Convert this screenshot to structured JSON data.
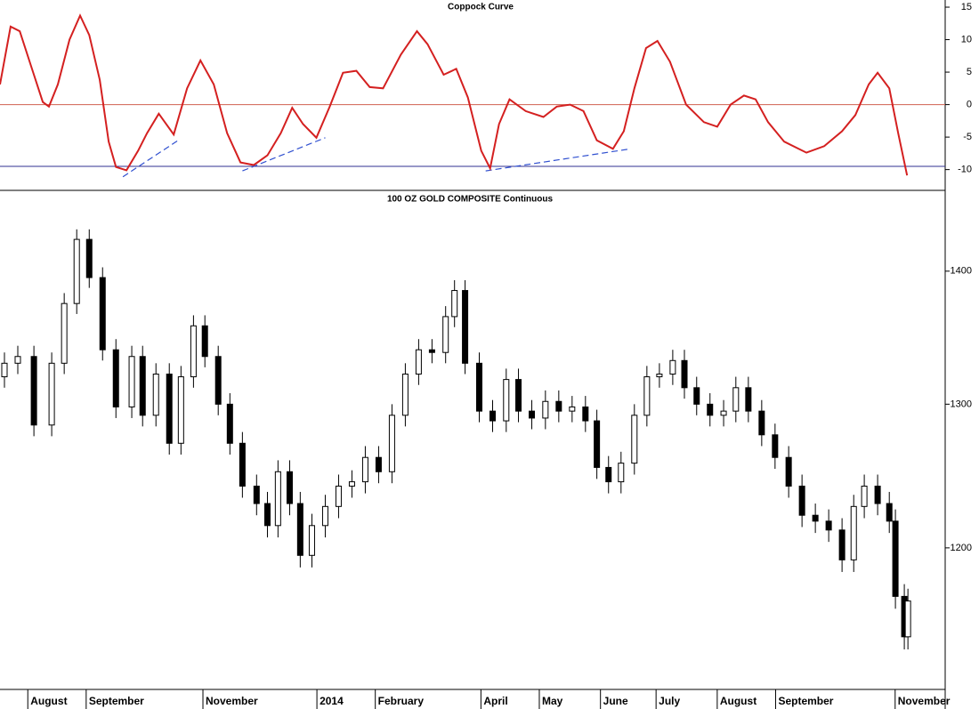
{
  "chart_data": [
    {
      "type": "line",
      "title": "Coppock Curve",
      "color": "#d42020",
      "x": [
        0,
        3.8,
        7.1,
        11.2,
        15.4,
        17.6,
        20.8,
        25.0,
        28.8,
        32.1,
        35.9,
        39.1,
        41.7,
        45.5,
        49.7,
        52.9,
        57.1,
        59.3,
        62.5,
        67.3,
        72.1,
        76.9,
        81.7,
        86.5,
        91.3,
        96.2,
        101.0,
        105.1,
        109.0,
        113.8,
        118.6,
        123.4,
        128.2,
        133.0,
        137.8,
        144.2,
        150.0,
        153.8,
        159.6,
        164.1,
        168.3,
        173.1,
        176.3,
        179.5,
        183.3,
        189.1,
        195.5,
        200.3,
        205.1,
        209.9,
        214.7,
        220.5,
        224.4,
        228.2,
        232.4,
        236.5,
        241.0,
        246.8,
        253.2,
        258.0,
        262.8,
        267.6,
        271.8,
        276.3,
        282.1,
        290.1,
        296.5,
        302.9,
        307.7,
        312.5,
        315.7,
        319.9,
        323.1,
        326.3
      ],
      "values": [
        3.1,
        12.0,
        11.3,
        5.9,
        0.4,
        -0.3,
        3.1,
        10.0,
        13.7,
        10.7,
        3.8,
        -5.7,
        -9.6,
        -10.1,
        -7.1,
        -4.4,
        -1.4,
        -2.7,
        -4.6,
        2.5,
        6.8,
        3.1,
        -4.4,
        -8.9,
        -9.3,
        -7.8,
        -4.4,
        -0.5,
        -3.0,
        -5.1,
        -0.3,
        4.9,
        5.2,
        2.7,
        2.5,
        7.7,
        11.3,
        9.3,
        4.6,
        5.5,
        1.1,
        -7.1,
        -9.8,
        -3.0,
        0.8,
        -1.0,
        -1.9,
        -0.3,
        0.0,
        -1.0,
        -5.5,
        -6.8,
        -4.1,
        2.5,
        8.7,
        9.8,
        6.6,
        0.0,
        -2.7,
        -3.4,
        0.0,
        1.4,
        0.8,
        -2.7,
        -5.7,
        -7.4,
        -6.4,
        -4.1,
        -1.6,
        3.1,
        4.9,
        2.5,
        -4.4,
        -10.9
      ],
      "xlim": [
        0,
        340
      ],
      "ylim": [
        -13.2,
        16.1
      ],
      "yticks": [
        15,
        10,
        5,
        0,
        -5,
        -10
      ],
      "reference_lines": [
        {
          "value": 0,
          "color": "#d06050"
        },
        {
          "value": -9.5,
          "color": "#303090"
        }
      ],
      "trendlines": [
        {
          "x": [
            44.2,
            64.1
          ],
          "y": [
            -11.1,
            -5.5
          ],
          "color": "#3050d0"
        },
        {
          "x": [
            87.2,
            117.0
          ],
          "y": [
            -10.2,
            -5.1
          ],
          "color": "#3050d0"
        },
        {
          "x": [
            174.7,
            226.9
          ],
          "y": [
            -10.2,
            -6.8
          ],
          "color": "#3050d0"
        }
      ]
    },
    {
      "type": "candlestick",
      "title": "100 OZ GOLD COMPOSITE Continuous",
      "log_scale": true,
      "x": [
        1.6,
        6.4,
        12.2,
        18.6,
        23.1,
        27.6,
        32.1,
        36.9,
        41.7,
        47.4,
        51.3,
        56.1,
        60.9,
        65.1,
        69.6,
        73.7,
        78.5,
        82.7,
        87.2,
        92.3,
        96.2,
        100,
        104.2,
        108.0,
        112.2,
        117.0,
        121.8,
        126.6,
        131.4,
        136.2,
        141.0,
        145.8,
        150.6,
        155.4,
        160.3,
        163.5,
        167.3,
        172.4,
        177.2,
        182.1,
        186.5,
        191.3,
        196.2,
        201.0,
        205.8,
        210.6,
        214.7,
        218.9,
        223.4,
        228.2,
        232.7,
        237.2,
        242.0,
        246.2,
        250.6,
        255.4,
        260.3,
        264.7,
        269.2,
        274.0,
        278.8,
        283.7,
        288.5,
        293.3,
        298.1,
        302.9,
        307.1,
        310.9,
        315.7,
        319.9,
        322.1,
        325.3,
        326.6
      ],
      "open": [
        1320,
        1330,
        1335,
        1285,
        1330,
        1375,
        1425,
        1395,
        1340,
        1298,
        1335,
        1292,
        1322,
        1272,
        1320,
        1358,
        1335,
        1300,
        1272,
        1242,
        1230,
        1215,
        1252,
        1230,
        1195,
        1215,
        1228,
        1242,
        1245,
        1262,
        1252,
        1292,
        1322,
        1340,
        1338,
        1365,
        1385,
        1330,
        1295,
        1288,
        1318,
        1295,
        1290,
        1302,
        1295,
        1298,
        1288,
        1255,
        1245,
        1258,
        1292,
        1320,
        1322,
        1332,
        1312,
        1300,
        1292,
        1295,
        1312,
        1295,
        1278,
        1262,
        1242,
        1222,
        1218,
        1212,
        1192,
        1228,
        1242,
        1230,
        1218,
        1168,
        1142
      ],
      "high": [
        1338,
        1343,
        1343,
        1338,
        1383,
        1433,
        1433,
        1403,
        1348,
        1343,
        1343,
        1330,
        1330,
        1328,
        1366,
        1366,
        1343,
        1308,
        1280,
        1250,
        1238,
        1260,
        1260,
        1238,
        1223,
        1236,
        1250,
        1253,
        1270,
        1270,
        1300,
        1330,
        1348,
        1348,
        1373,
        1393,
        1393,
        1338,
        1303,
        1326,
        1326,
        1303,
        1310,
        1310,
        1306,
        1306,
        1296,
        1263,
        1266,
        1300,
        1328,
        1330,
        1340,
        1340,
        1320,
        1308,
        1303,
        1320,
        1320,
        1303,
        1286,
        1270,
        1250,
        1230,
        1226,
        1220,
        1236,
        1250,
        1250,
        1238,
        1226,
        1176,
        1173
      ],
      "low": [
        1312,
        1322,
        1277,
        1277,
        1322,
        1367,
        1387,
        1332,
        1290,
        1290,
        1284,
        1284,
        1264,
        1264,
        1312,
        1327,
        1292,
        1264,
        1234,
        1222,
        1207,
        1207,
        1222,
        1187,
        1187,
        1207,
        1220,
        1234,
        1237,
        1244,
        1244,
        1284,
        1314,
        1330,
        1330,
        1357,
        1322,
        1287,
        1280,
        1280,
        1287,
        1282,
        1282,
        1287,
        1287,
        1280,
        1247,
        1237,
        1237,
        1250,
        1284,
        1312,
        1314,
        1304,
        1292,
        1284,
        1284,
        1287,
        1287,
        1270,
        1254,
        1234,
        1214,
        1210,
        1204,
        1184,
        1184,
        1220,
        1222,
        1210,
        1160,
        1134,
        1134
      ],
      "close": [
        1330,
        1335,
        1285,
        1330,
        1375,
        1425,
        1395,
        1340,
        1298,
        1335,
        1292,
        1322,
        1272,
        1320,
        1358,
        1335,
        1300,
        1272,
        1242,
        1230,
        1215,
        1252,
        1230,
        1195,
        1215,
        1228,
        1242,
        1245,
        1262,
        1252,
        1292,
        1322,
        1340,
        1338,
        1365,
        1385,
        1330,
        1295,
        1288,
        1318,
        1295,
        1290,
        1302,
        1295,
        1298,
        1288,
        1255,
        1245,
        1258,
        1292,
        1320,
        1322,
        1332,
        1312,
        1300,
        1292,
        1295,
        1312,
        1295,
        1278,
        1262,
        1242,
        1222,
        1218,
        1212,
        1192,
        1228,
        1242,
        1230,
        1218,
        1168,
        1142,
        1165
      ],
      "xlim": [
        0,
        340
      ],
      "ylim": [
        1109,
        1463
      ],
      "yticks": [
        1400,
        1300,
        1200
      ],
      "xticks": [
        {
          "value": 10,
          "label": "August"
        },
        {
          "value": 31,
          "label": "September"
        },
        {
          "value": 73,
          "label": "November"
        },
        {
          "value": 114,
          "label": "2014"
        },
        {
          "value": 135,
          "label": "February"
        },
        {
          "value": 173,
          "label": "April"
        },
        {
          "value": 194,
          "label": "May"
        },
        {
          "value": 216,
          "label": "June"
        },
        {
          "value": 236,
          "label": "July"
        },
        {
          "value": 258,
          "label": "August"
        },
        {
          "value": 279,
          "label": "September"
        },
        {
          "value": 322,
          "label": "November"
        }
      ]
    }
  ]
}
